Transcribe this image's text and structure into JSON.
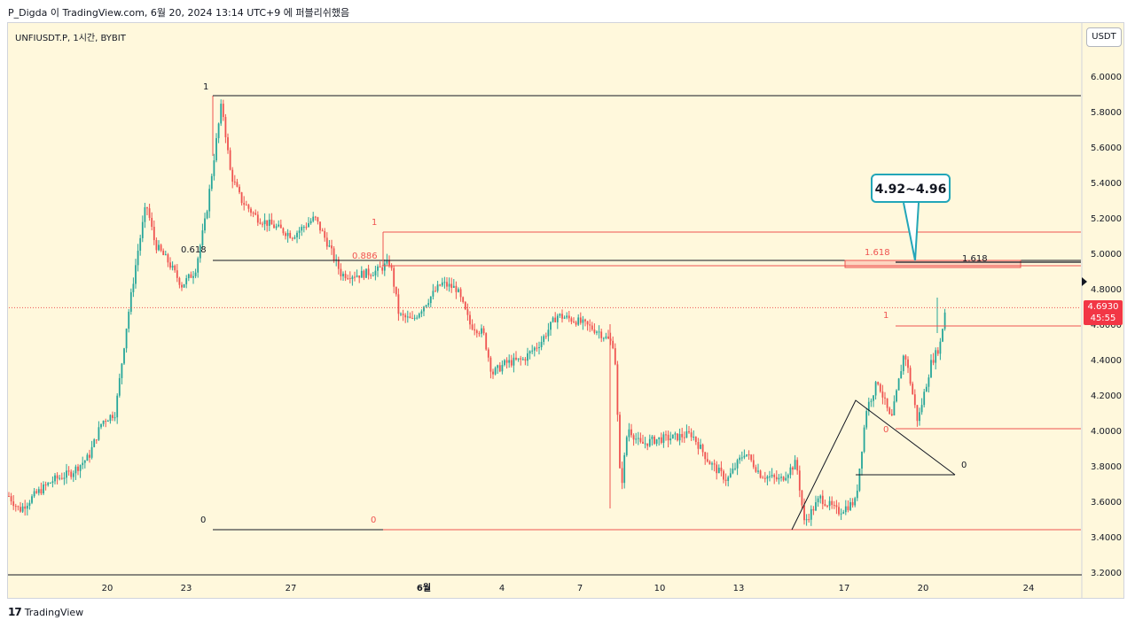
{
  "header": {
    "caption": "P_Digda 이 TradingView.com, 6월 20, 2024 13:14 UTC+9 에 퍼블리쉬했음"
  },
  "symbol": "UNFIUSDT.P, 1시간, BYBIT",
  "currency_button": "USDT",
  "footer": {
    "logo_text": "TradingView",
    "logo_mark": "17"
  },
  "colors": {
    "bull": "#26a69a",
    "bear": "#ef5350",
    "background": "#fff8dc",
    "fib_red": "#ef5350",
    "fib_black": "#000000",
    "callout_border": "#22a6b8",
    "price_tag": "#f23645"
  },
  "chart_data": {
    "type": "candlestick",
    "timeframe": "1시간",
    "ylim": [
      3.2,
      6.1
    ],
    "y_ticks": [
      "6.0000",
      "5.8000",
      "5.6000",
      "5.4000",
      "5.2000",
      "5.0000",
      "4.8000",
      "4.6000",
      "4.4000",
      "4.2000",
      "4.0000",
      "3.8000",
      "3.6000",
      "3.4000",
      "3.2000"
    ],
    "x_ticks": [
      "20",
      "23",
      "27",
      "6월",
      "4",
      "7",
      "10",
      "13",
      "17",
      "20",
      "24"
    ],
    "last_price": "4.6930",
    "countdown": "45:55",
    "close_path": [
      {
        "t": 0,
        "p": 3.63
      },
      {
        "t": 12,
        "p": 3.55
      },
      {
        "t": 30,
        "p": 3.64
      },
      {
        "t": 50,
        "p": 3.72
      },
      {
        "t": 70,
        "p": 3.76
      },
      {
        "t": 90,
        "p": 3.85
      },
      {
        "t": 105,
        "p": 4.05
      },
      {
        "t": 120,
        "p": 4.1
      },
      {
        "t": 133,
        "p": 4.6
      },
      {
        "t": 145,
        "p": 5.0
      },
      {
        "t": 155,
        "p": 5.28
      },
      {
        "t": 165,
        "p": 5.05
      },
      {
        "t": 180,
        "p": 4.95
      },
      {
        "t": 195,
        "p": 4.82
      },
      {
        "t": 210,
        "p": 4.9
      },
      {
        "t": 222,
        "p": 5.2
      },
      {
        "t": 233,
        "p": 5.6
      },
      {
        "t": 240,
        "p": 5.85
      },
      {
        "t": 250,
        "p": 5.45
      },
      {
        "t": 262,
        "p": 5.3
      },
      {
        "t": 280,
        "p": 5.2
      },
      {
        "t": 300,
        "p": 5.15
      },
      {
        "t": 320,
        "p": 5.1
      },
      {
        "t": 345,
        "p": 5.2
      },
      {
        "t": 360,
        "p": 5.05
      },
      {
        "t": 375,
        "p": 4.88
      },
      {
        "t": 395,
        "p": 4.88
      },
      {
        "t": 415,
        "p": 4.9
      },
      {
        "t": 430,
        "p": 4.95
      },
      {
        "t": 440,
        "p": 4.65
      },
      {
        "t": 455,
        "p": 4.62
      },
      {
        "t": 470,
        "p": 4.72
      },
      {
        "t": 488,
        "p": 4.83
      },
      {
        "t": 505,
        "p": 4.8
      },
      {
        "t": 520,
        "p": 4.6
      },
      {
        "t": 535,
        "p": 4.55
      },
      {
        "t": 545,
        "p": 4.32
      },
      {
        "t": 560,
        "p": 4.38
      },
      {
        "t": 580,
        "p": 4.4
      },
      {
        "t": 600,
        "p": 4.5
      },
      {
        "t": 618,
        "p": 4.65
      },
      {
        "t": 640,
        "p": 4.62
      },
      {
        "t": 665,
        "p": 4.56
      },
      {
        "t": 683,
        "p": 4.48
      },
      {
        "t": 690,
        "p": 3.65
      },
      {
        "t": 698,
        "p": 4.02
      },
      {
        "t": 712,
        "p": 3.92
      },
      {
        "t": 730,
        "p": 3.95
      },
      {
        "t": 750,
        "p": 3.96
      },
      {
        "t": 770,
        "p": 3.98
      },
      {
        "t": 790,
        "p": 3.82
      },
      {
        "t": 810,
        "p": 3.72
      },
      {
        "t": 830,
        "p": 3.88
      },
      {
        "t": 848,
        "p": 3.75
      },
      {
        "t": 870,
        "p": 3.72
      },
      {
        "t": 888,
        "p": 3.82
      },
      {
        "t": 897,
        "p": 3.48
      },
      {
        "t": 915,
        "p": 3.62
      },
      {
        "t": 935,
        "p": 3.54
      },
      {
        "t": 955,
        "p": 3.6
      },
      {
        "t": 967,
        "p": 4.12
      },
      {
        "t": 980,
        "p": 4.28
      },
      {
        "t": 995,
        "p": 4.05
      },
      {
        "t": 1010,
        "p": 4.45
      },
      {
        "t": 1025,
        "p": 4.05
      },
      {
        "t": 1040,
        "p": 4.38
      },
      {
        "t": 1050,
        "p": 4.48
      },
      {
        "t": 1057,
        "p": 4.72
      }
    ],
    "fib_retracements": [
      {
        "name": "fib-left",
        "color": "black",
        "levels": [
          {
            "label": "1",
            "price": 5.89
          },
          {
            "label": "0.618",
            "price": 4.96
          },
          {
            "label": "0",
            "price": 3.44
          }
        ]
      },
      {
        "name": "fib-middle",
        "color": "red",
        "levels": [
          {
            "label": "1",
            "price": 5.12
          },
          {
            "label": "0.886",
            "price": 4.93
          },
          {
            "label": "0",
            "price": 3.44
          }
        ]
      },
      {
        "name": "fib-right",
        "color": "red",
        "levels": [
          {
            "label": "1",
            "price": 4.59
          },
          {
            "label": "1.618",
            "price": 4.95
          },
          {
            "label": "0",
            "price": 4.01
          }
        ]
      },
      {
        "name": "fib-triangle",
        "color": "black",
        "levels": [
          {
            "label": "1.618",
            "price": 4.95
          },
          {
            "label": "0",
            "price": 3.75
          }
        ]
      }
    ],
    "zone": {
      "from": 4.92,
      "to": 4.96
    },
    "annotations": [
      {
        "text": "4.92~4.96",
        "target_price": 4.95
      }
    ]
  }
}
